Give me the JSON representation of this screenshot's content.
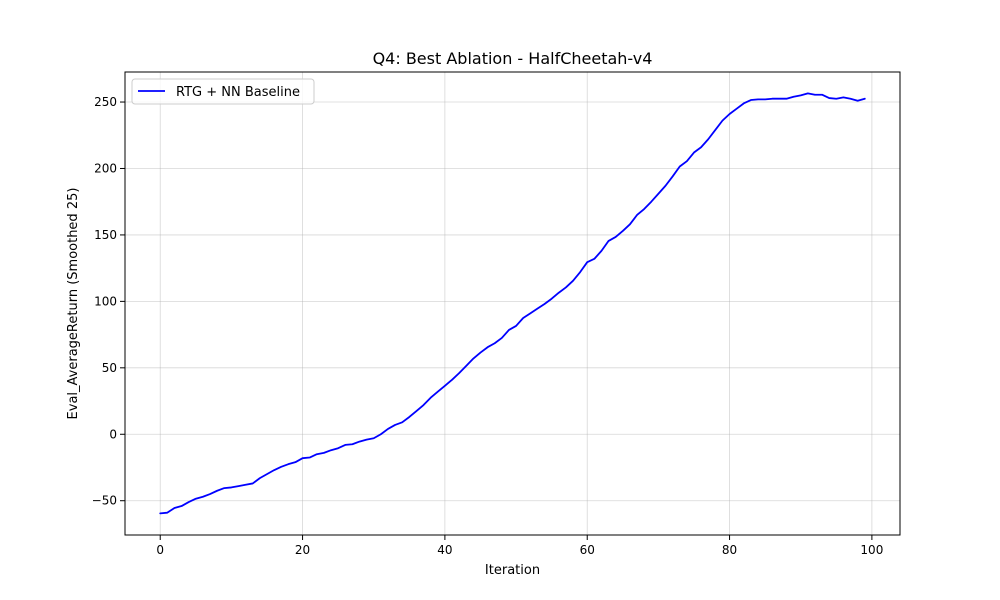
{
  "chart_data": {
    "type": "line",
    "title": "Q4: Best Ablation - HalfCheetah-v4",
    "xlabel": "Iteration",
    "ylabel": "Eval_AverageReturn (Smoothed 25)",
    "xlim": [
      -4.95,
      103.95
    ],
    "ylim": [
      -75.8,
      272.6
    ],
    "xticks": [
      0,
      20,
      40,
      60,
      80,
      100
    ],
    "yticks": [
      -50,
      0,
      50,
      100,
      150,
      200,
      250
    ],
    "grid": true,
    "legend_position": "top-left",
    "series": [
      {
        "name": "RTG + NN Baseline",
        "color": "#0000ff",
        "x": [
          0,
          1,
          2,
          3,
          4,
          5,
          6,
          7,
          8,
          9,
          10,
          11,
          12,
          13,
          14,
          15,
          16,
          17,
          18,
          19,
          20,
          21,
          22,
          23,
          24,
          25,
          26,
          27,
          28,
          29,
          30,
          31,
          32,
          33,
          34,
          35,
          36,
          37,
          38,
          39,
          40,
          41,
          42,
          43,
          44,
          45,
          46,
          47,
          48,
          49,
          50,
          51,
          52,
          53,
          54,
          55,
          56,
          57,
          58,
          59,
          60,
          61,
          62,
          63,
          64,
          65,
          66,
          67,
          68,
          69,
          70,
          71,
          72,
          73,
          74,
          75,
          76,
          77,
          78,
          79,
          80,
          81,
          82,
          83,
          84,
          85,
          86,
          87,
          88,
          89,
          90,
          91,
          92,
          93,
          94,
          95,
          96,
          97,
          98,
          99
        ],
        "y": [
          -59.5,
          -59,
          -55.5,
          -54,
          -51,
          -48.5,
          -47,
          -45,
          -42.5,
          -40.5,
          -40,
          -39,
          -38,
          -37,
          -33,
          -30,
          -27,
          -24.5,
          -22.5,
          -21,
          -18,
          -17.5,
          -15,
          -14,
          -12,
          -10.5,
          -8,
          -7.5,
          -5.5,
          -4,
          -3,
          0,
          4,
          7,
          9,
          13,
          17.5,
          22,
          27.5,
          32,
          36.5,
          41,
          46,
          51.5,
          57,
          61.5,
          65.5,
          68.5,
          72.5,
          78.5,
          81.5,
          87.5,
          91,
          94.5,
          98,
          102,
          106.5,
          110.5,
          115.5,
          122,
          129.5,
          132,
          138,
          145.5,
          148.5,
          153,
          158,
          165,
          169.5,
          175,
          181,
          187,
          194,
          201.5,
          205.5,
          212,
          216,
          222,
          229,
          236,
          241,
          245,
          249,
          251.5,
          252,
          252,
          252.5,
          252.5,
          252.5,
          254,
          255,
          256.5,
          255.5,
          255.5,
          253,
          252.5,
          253.5,
          252.5,
          251,
          252.5
        ]
      }
    ]
  }
}
